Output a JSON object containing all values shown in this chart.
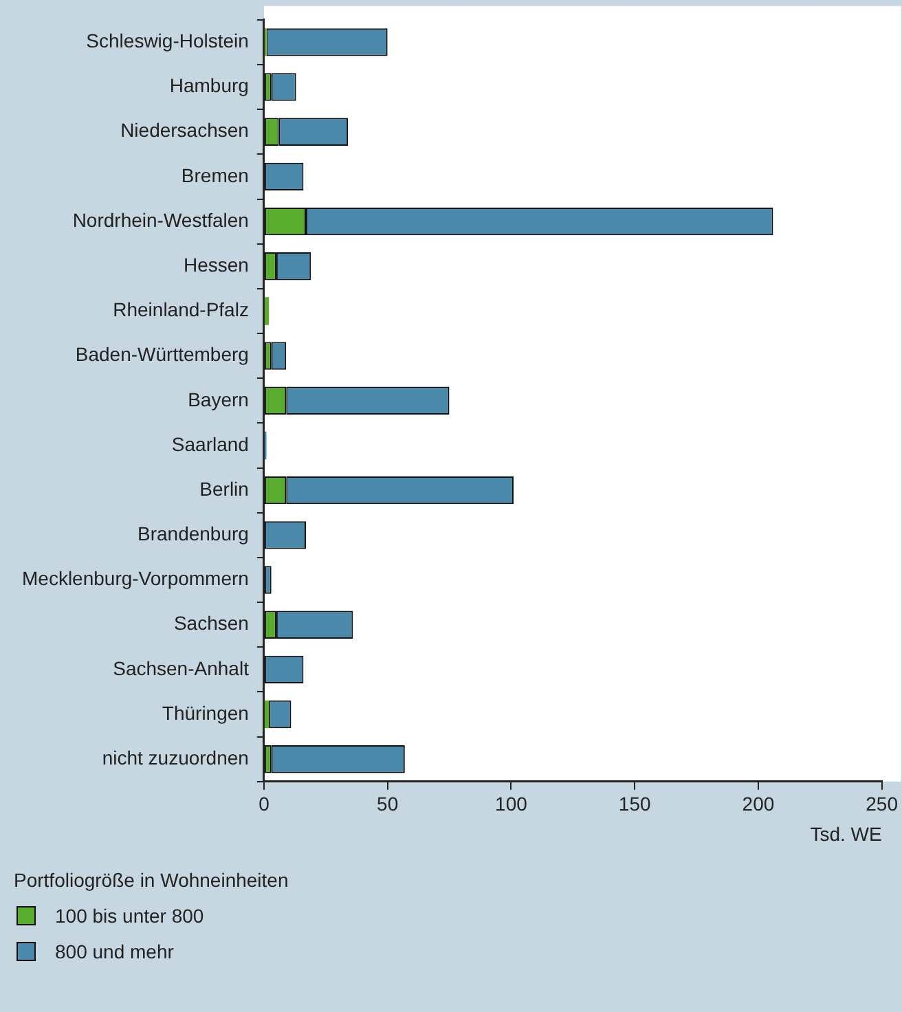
{
  "chart_data": {
    "type": "bar",
    "orientation": "horizontal",
    "stacked": true,
    "xlabel": "Tsd. WE",
    "legend_title": "Portfoliogröße in Wohneinheiten",
    "legend": "bottom left",
    "grid": false,
    "categories": [
      "Schleswig-Holstein",
      "Hamburg",
      "Niedersachsen",
      "Bremen",
      "Nordrhein-Westfalen",
      "Hessen",
      "Rheinland-Pfalz",
      "Baden-Württemberg",
      "Bayern",
      "Saarland",
      "Berlin",
      "Brandenburg",
      "Mecklenburg-Vorpommern",
      "Sachsen",
      "Sachsen-Anhalt",
      "Thüringen",
      "nicht zuzuordnen"
    ],
    "series": [
      {
        "name": "100 bis unter 800",
        "color": "#5aac2e",
        "values": [
          1,
          3,
          6,
          0,
          17,
          5,
          2,
          3,
          9,
          0,
          9,
          0,
          0,
          5,
          0,
          2,
          3
        ]
      },
      {
        "name": "800 und mehr",
        "color": "#4a89aa",
        "values": [
          49,
          10,
          28,
          16,
          189,
          14,
          0,
          6,
          66,
          1,
          92,
          17,
          3,
          31,
          16,
          9,
          54
        ]
      }
    ],
    "xlim": [
      0,
      250
    ],
    "xticks": [
      0,
      50,
      100,
      150,
      200,
      250
    ]
  }
}
